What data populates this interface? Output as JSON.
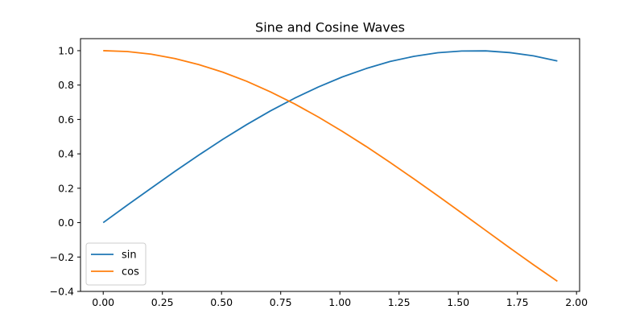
{
  "chart_data": {
    "type": "line",
    "title": "Sine and Cosine Waves",
    "xlabel": "",
    "ylabel": "",
    "xlim": [
      -0.096,
      2.013
    ],
    "ylim": [
      -0.4,
      1.07
    ],
    "x_ticks": [
      0.0,
      0.25,
      0.5,
      0.75,
      1.0,
      1.25,
      1.5,
      1.75,
      2.0
    ],
    "x_tick_labels": [
      "0.00",
      "0.25",
      "0.50",
      "0.75",
      "1.00",
      "1.25",
      "1.50",
      "1.75",
      "2.00"
    ],
    "y_ticks": [
      -0.4,
      -0.2,
      0.0,
      0.2,
      0.4,
      0.6,
      0.8,
      1.0
    ],
    "y_tick_labels": [
      "−0.4",
      "−0.2",
      "0.0",
      "0.2",
      "0.4",
      "0.6",
      "0.8",
      "1.0"
    ],
    "grid": false,
    "legend_position": "lower-left",
    "x": [
      0.0,
      0.101,
      0.202,
      0.303,
      0.404,
      0.505,
      0.606,
      0.707,
      0.808,
      0.909,
      1.01,
      1.111,
      1.212,
      1.313,
      1.414,
      1.515,
      1.616,
      1.717,
      1.818,
      1.919
    ],
    "series": [
      {
        "name": "sin",
        "color": "#1f77b4",
        "values": [
          0.0,
          0.101,
          0.2,
          0.298,
          0.393,
          0.484,
          0.57,
          0.65,
          0.723,
          0.789,
          0.847,
          0.896,
          0.937,
          0.967,
          0.988,
          0.998,
          0.999,
          0.989,
          0.97,
          0.94
        ]
      },
      {
        "name": "cos",
        "color": "#ff7f0e",
        "values": [
          1.0,
          0.995,
          0.98,
          0.954,
          0.919,
          0.875,
          0.822,
          0.76,
          0.691,
          0.614,
          0.531,
          0.443,
          0.35,
          0.254,
          0.156,
          0.056,
          -0.045,
          -0.146,
          -0.245,
          -0.341
        ]
      }
    ]
  }
}
